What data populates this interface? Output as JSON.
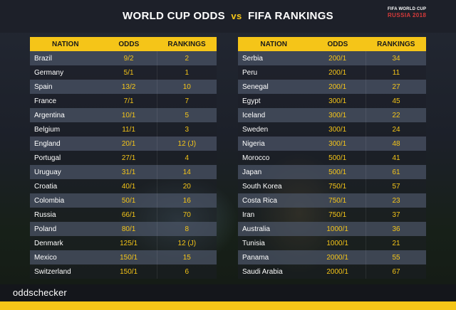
{
  "header": {
    "title_left": "WORLD CUP ODDS",
    "title_vs": "vs",
    "title_right": "FIFA RANKINGS",
    "badge_top": "FIFA WORLD CUP",
    "badge_bottom": "RUSSIA 2018"
  },
  "columns": {
    "nation": "NATION",
    "odds": "ODDS",
    "rankings": "RANKINGS"
  },
  "left": [
    {
      "nation": "Brazil",
      "odds": "9/2",
      "rank": "2"
    },
    {
      "nation": "Germany",
      "odds": "5/1",
      "rank": "1"
    },
    {
      "nation": "Spain",
      "odds": "13/2",
      "rank": "10"
    },
    {
      "nation": "France",
      "odds": "7/1",
      "rank": "7"
    },
    {
      "nation": "Argentina",
      "odds": "10/1",
      "rank": "5"
    },
    {
      "nation": "Belgium",
      "odds": "11/1",
      "rank": "3"
    },
    {
      "nation": "England",
      "odds": "20/1",
      "rank": "12 (J)"
    },
    {
      "nation": "Portugal",
      "odds": "27/1",
      "rank": "4"
    },
    {
      "nation": "Uruguay",
      "odds": "31/1",
      "rank": "14"
    },
    {
      "nation": "Croatia",
      "odds": "40/1",
      "rank": "20"
    },
    {
      "nation": "Colombia",
      "odds": "50/1",
      "rank": "16"
    },
    {
      "nation": "Russia",
      "odds": "66/1",
      "rank": "70"
    },
    {
      "nation": "Poland",
      "odds": "80/1",
      "rank": "8"
    },
    {
      "nation": "Denmark",
      "odds": "125/1",
      "rank": "12 (J)"
    },
    {
      "nation": "Mexico",
      "odds": "150/1",
      "rank": "15"
    },
    {
      "nation": "Switzerland",
      "odds": "150/1",
      "rank": "6"
    }
  ],
  "right": [
    {
      "nation": "Serbia",
      "odds": "200/1",
      "rank": "34"
    },
    {
      "nation": "Peru",
      "odds": "200/1",
      "rank": "11"
    },
    {
      "nation": "Senegal",
      "odds": "200/1",
      "rank": "27"
    },
    {
      "nation": "Egypt",
      "odds": "300/1",
      "rank": "45"
    },
    {
      "nation": "Iceland",
      "odds": "300/1",
      "rank": "22"
    },
    {
      "nation": "Sweden",
      "odds": "300/1",
      "rank": "24"
    },
    {
      "nation": "Nigeria",
      "odds": "300/1",
      "rank": "48"
    },
    {
      "nation": "Morocco",
      "odds": "500/1",
      "rank": "41"
    },
    {
      "nation": "Japan",
      "odds": "500/1",
      "rank": "61"
    },
    {
      "nation": "South Korea",
      "odds": "750/1",
      "rank": "57"
    },
    {
      "nation": "Costa Rica",
      "odds": "750/1",
      "rank": "23"
    },
    {
      "nation": "Iran",
      "odds": "750/1",
      "rank": "37"
    },
    {
      "nation": "Australia",
      "odds": "1000/1",
      "rank": "36"
    },
    {
      "nation": "Tunisia",
      "odds": "1000/1",
      "rank": "21"
    },
    {
      "nation": "Panama",
      "odds": "2000/1",
      "rank": "55"
    },
    {
      "nation": "Saudi Arabia",
      "odds": "2000/1",
      "rank": "67"
    }
  ],
  "footer": {
    "brand": "oddschecker"
  },
  "colors": {
    "accent": "#f5c518",
    "row_light": "#464e5f",
    "background": "#1b1f27"
  }
}
